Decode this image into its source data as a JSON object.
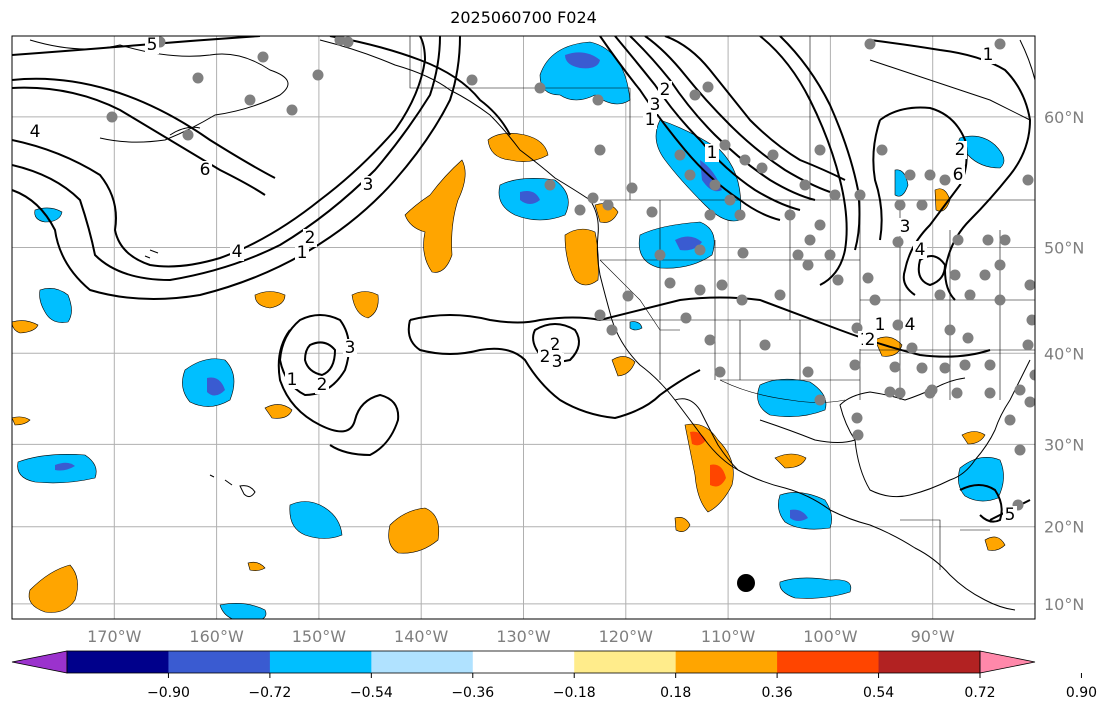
{
  "title": "2025060700 F024",
  "map": {
    "lon_ticks": [
      "170°W",
      "160°W",
      "150°W",
      "140°W",
      "130°W",
      "120°W",
      "110°W",
      "100°W",
      "90°W"
    ],
    "lat_ticks": [
      "60°N",
      "50°N",
      "40°N",
      "30°N",
      "20°N",
      "10°N"
    ],
    "extent": {
      "lon_min": -180,
      "lon_max": -80,
      "lat_min": 8,
      "lat_max": 65
    },
    "contour_labels": [
      "5",
      "4",
      "6",
      "3",
      "4",
      "2",
      "1",
      "3",
      "2",
      "1",
      "1",
      "2",
      "3",
      "2",
      "3",
      "2",
      "1",
      "1",
      "2",
      "6",
      "5",
      "4",
      "3",
      "4",
      "1",
      "2",
      "1"
    ]
  },
  "colorbar": {
    "ticks": [
      "−0.90",
      "−0.72",
      "−0.54",
      "−0.36",
      "−0.18",
      "0.18",
      "0.36",
      "0.54",
      "0.72",
      "0.90"
    ],
    "colors": [
      "#9b32cd",
      "#00008b",
      "#3a5bd1",
      "#00bfff",
      "#b0e2ff",
      "#ffffff",
      "#ffec8b",
      "#ffa500",
      "#ff4500",
      "#b22222",
      "#ff88aa"
    ]
  },
  "colors": {
    "gray_marker": "#808080",
    "contour": "#000000",
    "grid": "#b0b0b0"
  }
}
